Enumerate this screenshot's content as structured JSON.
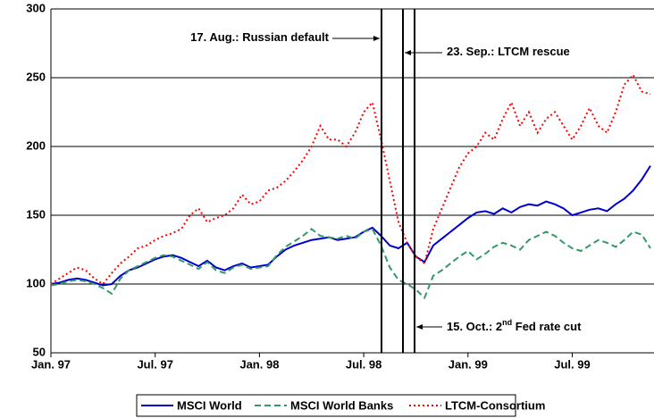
{
  "chart_data": {
    "type": "line",
    "categories": [
      "Jan. 97",
      null,
      null,
      null,
      null,
      null,
      null,
      null,
      null,
      null,
      null,
      null,
      "Jul. 97",
      null,
      null,
      null,
      null,
      null,
      null,
      null,
      null,
      null,
      null,
      null,
      "Jan. 98",
      null,
      null,
      null,
      null,
      null,
      null,
      null,
      null,
      null,
      null,
      null,
      "Jul. 98",
      null,
      null,
      null,
      null,
      null,
      null,
      null,
      null,
      null,
      null,
      null,
      "Jan. 99",
      null,
      null,
      null,
      null,
      null,
      null,
      null,
      null,
      null,
      null,
      null,
      "Jul. 99",
      null,
      null,
      null,
      null,
      null,
      null,
      null,
      null,
      null
    ],
    "series": [
      {
        "name": "MSCI World",
        "color": "#0000cc",
        "dash": "solid",
        "values": [
          100,
          101,
          103,
          104,
          103,
          101,
          99,
          100,
          106,
          110,
          112,
          115,
          118,
          120,
          121,
          119,
          116,
          113,
          117,
          112,
          110,
          113,
          115,
          112,
          113,
          114,
          120,
          125,
          128,
          130,
          132,
          133,
          134,
          132,
          133,
          134,
          138,
          141,
          135,
          128,
          126,
          130,
          120,
          116,
          128,
          133,
          138,
          143,
          148,
          152,
          153,
          151,
          155,
          152,
          156,
          158,
          157,
          160,
          158,
          155,
          150,
          152,
          154,
          155,
          153,
          158,
          162,
          168,
          176,
          186
        ]
      },
      {
        "name": "MSCI World Banks",
        "color": "#339966",
        "dash": "dashed",
        "values": [
          99,
          100,
          102,
          103,
          102,
          100,
          97,
          93,
          104,
          110,
          113,
          116,
          119,
          121,
          120,
          117,
          114,
          111,
          116,
          110,
          108,
          112,
          114,
          111,
          112,
          113,
          121,
          127,
          131,
          135,
          140,
          135,
          134,
          133,
          135,
          133,
          138,
          140,
          128,
          112,
          103,
          100,
          96,
          90,
          106,
          110,
          115,
          120,
          124,
          118,
          122,
          127,
          130,
          128,
          125,
          132,
          135,
          138,
          135,
          130,
          126,
          124,
          128,
          132,
          130,
          127,
          132,
          138,
          136,
          126
        ]
      },
      {
        "name": "LTCM-Consortium",
        "color": "#ff0000",
        "dash": "dotted",
        "values": [
          100,
          104,
          108,
          112,
          110,
          104,
          100,
          108,
          115,
          120,
          126,
          128,
          132,
          135,
          137,
          140,
          150,
          155,
          145,
          148,
          150,
          155,
          165,
          158,
          160,
          168,
          170,
          175,
          182,
          190,
          200,
          215,
          205,
          205,
          200,
          210,
          225,
          232,
          205,
          175,
          145,
          130,
          120,
          115,
          140,
          155,
          170,
          185,
          195,
          200,
          210,
          205,
          220,
          232,
          215,
          225,
          210,
          220,
          225,
          215,
          205,
          215,
          228,
          215,
          210,
          225,
          245,
          252,
          240,
          238
        ]
      }
    ],
    "ylim": [
      50,
      300
    ],
    "yticks": [
      50,
      100,
      150,
      200,
      250,
      300
    ],
    "grid": true,
    "legend": "bottom",
    "annotations": [
      {
        "text": [
          "17. Aug.: Russian default"
        ]
      },
      {
        "text": [
          "23. Sep.: LTCM rescue"
        ]
      },
      {
        "text": [
          "15. Oct.: 2",
          "nd",
          " Fed rate cut"
        ]
      }
    ]
  }
}
